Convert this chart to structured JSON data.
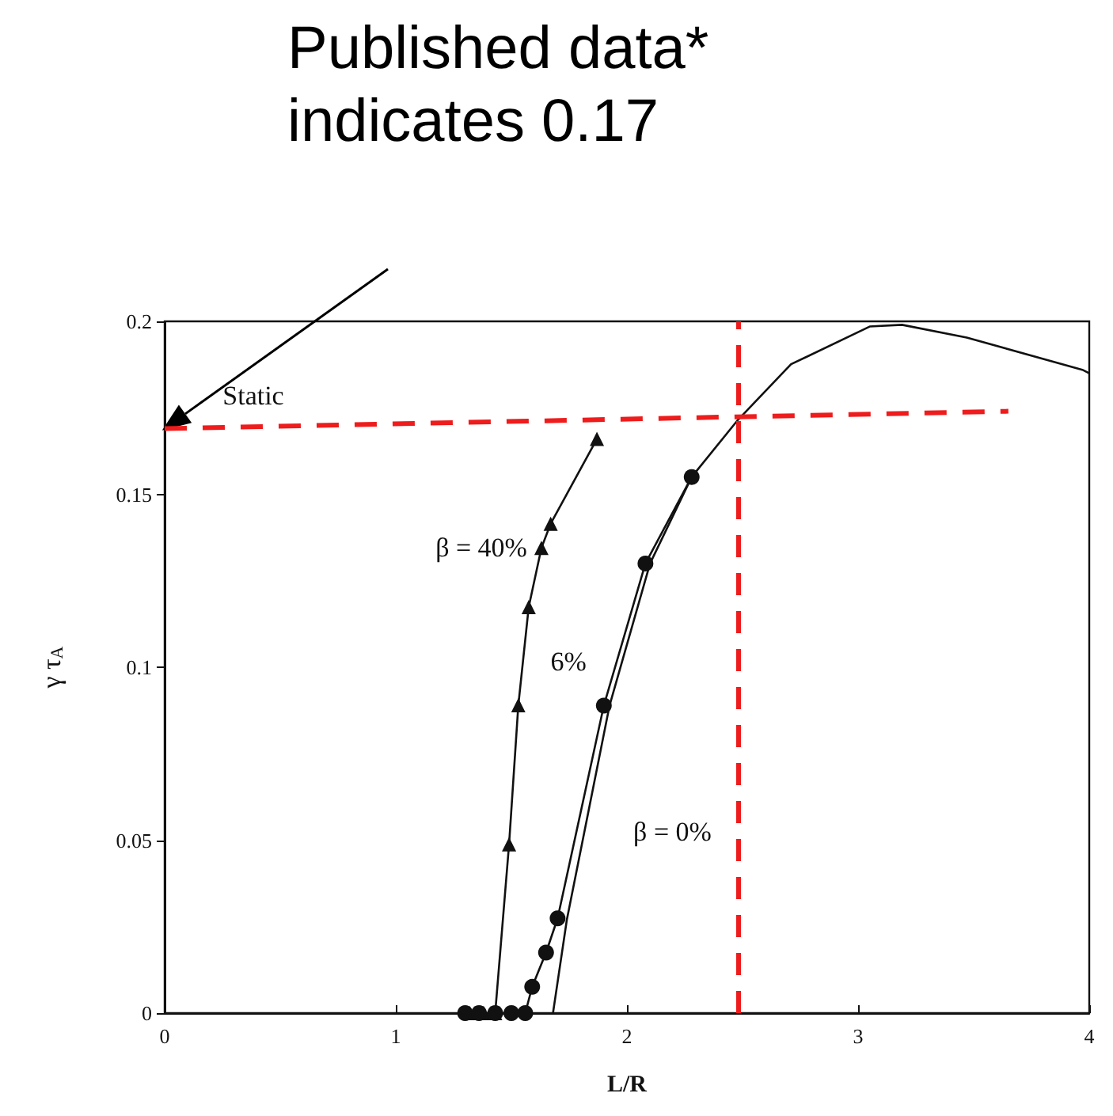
{
  "chart_data": {
    "type": "line",
    "xlabel": "L/R",
    "ylabel": "γ τ$_{A}$",
    "xlim": [
      0,
      4
    ],
    "xticks": [
      0,
      1,
      2,
      3,
      4
    ],
    "ylim": [
      0,
      0.2
    ],
    "yticks": [
      0,
      0.05,
      0.1,
      0.15,
      0.2
    ],
    "grid": false,
    "legend": false,
    "series": [
      {
        "name": "β = 40%",
        "color": "#111111",
        "marker": "triangle",
        "x": [
          1.32,
          1.38,
          1.43,
          1.49,
          1.53,
          1.575,
          1.63,
          1.67,
          1.87
        ],
        "values": [
          0,
          0,
          0,
          0.0488,
          0.089,
          0.1174,
          0.1345,
          0.1415,
          0.166
        ]
      },
      {
        "name": "6%",
        "color": "#111111",
        "marker": "circle",
        "x": [
          1.3,
          1.36,
          1.43,
          1.5,
          1.56,
          1.59,
          1.65,
          1.7,
          1.9,
          2.08,
          2.28
        ],
        "values": [
          0,
          0,
          0,
          0,
          0,
          0.0076,
          0.0175,
          0.0274,
          0.0889,
          0.13,
          0.155
        ]
      },
      {
        "name": "β = 0%",
        "color": "#111111",
        "marker": "none",
        "x": [
          1.68,
          1.74,
          1.925,
          2.1,
          2.28,
          2.48,
          2.71,
          3.05,
          3.19,
          3.47,
          3.97,
          4
        ],
        "values": [
          0,
          0.027,
          0.089,
          0.13,
          0.155,
          0.1715,
          0.1876,
          0.1985,
          0.199,
          0.1953,
          0.186,
          0.185
        ]
      },
      {
        "color": "#ee1c1c",
        "marker": "none",
        "line_style": "dashed",
        "x": [
          0,
          3.65
        ],
        "values": [
          0.169,
          0.174
        ]
      }
    ],
    "ref_lines": [
      {
        "axis": "x",
        "value": 2.48,
        "color": "#ee1c1c",
        "line_style": "dashed"
      }
    ],
    "annotations": [
      "Published data* indicates 0.17",
      "Static"
    ]
  }
}
